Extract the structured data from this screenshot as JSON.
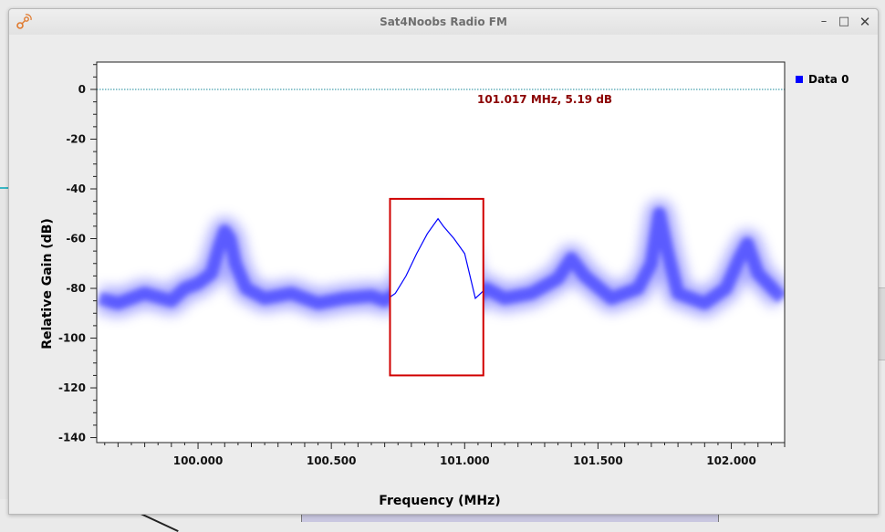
{
  "window": {
    "title": "Sat4Noobs Radio FM",
    "controls": {
      "minimize": "–",
      "maximize": "□",
      "close": "✕"
    }
  },
  "legend": {
    "label": "Data 0",
    "color": "#0000ff"
  },
  "marker": {
    "text": "101.017 MHz, 5.19 dB"
  },
  "chart_data": {
    "type": "line",
    "xlabel": "Frequency (MHz)",
    "ylabel": "Relative Gain (dB)",
    "xlim": [
      99.62,
      102.2
    ],
    "ylim": [
      -142,
      11
    ],
    "x_ticks": [
      {
        "value": 100.0,
        "label": "100.000"
      },
      {
        "value": 100.5,
        "label": "100.500"
      },
      {
        "value": 101.0,
        "label": "101.000"
      },
      {
        "value": 101.5,
        "label": "101.500"
      },
      {
        "value": 102.0,
        "label": "102.000"
      }
    ],
    "y_ticks": [
      {
        "value": 0,
        "label": "0"
      },
      {
        "value": -20,
        "label": "-20"
      },
      {
        "value": -40,
        "label": "-40"
      },
      {
        "value": -60,
        "label": "-60"
      },
      {
        "value": -80,
        "label": "-80"
      },
      {
        "value": -100,
        "label": "-100"
      },
      {
        "value": -120,
        "label": "-120"
      },
      {
        "value": -140,
        "label": "-140"
      }
    ],
    "reference_line": {
      "y": 0,
      "color": "#1a8a9a"
    },
    "series": [
      {
        "name": "Data 0",
        "color": "#0000ff",
        "x": [
          99.63,
          99.7,
          99.8,
          99.9,
          99.95,
          100.0,
          100.05,
          100.08,
          100.1,
          100.12,
          100.14,
          100.18,
          100.25,
          100.35,
          100.45,
          100.55,
          100.65,
          100.7,
          100.74,
          100.78,
          100.82,
          100.86,
          100.88,
          100.9,
          100.92,
          100.96,
          101.0,
          101.04,
          101.08,
          101.15,
          101.25,
          101.35,
          101.4,
          101.45,
          101.55,
          101.65,
          101.7,
          101.73,
          101.76,
          101.8,
          101.9,
          101.98,
          102.03,
          102.06,
          102.1,
          102.19
        ],
        "y": [
          -84,
          -86,
          -82,
          -85,
          -80,
          -78,
          -74,
          -63,
          -57,
          -60,
          -70,
          -80,
          -84,
          -82,
          -86,
          -84,
          -83,
          -85,
          -82,
          -75,
          -66,
          -58,
          -55,
          -52,
          -55,
          -60,
          -66,
          -84,
          -80,
          -84,
          -82,
          -76,
          -68,
          -75,
          -84,
          -80,
          -70,
          -50,
          -65,
          -82,
          -86,
          -80,
          -68,
          -62,
          -74,
          -84
        ]
      }
    ],
    "highlight_region": {
      "x": [
        100.72,
        101.07
      ],
      "y": [
        -115,
        -44
      ],
      "color": "#d00000"
    }
  }
}
